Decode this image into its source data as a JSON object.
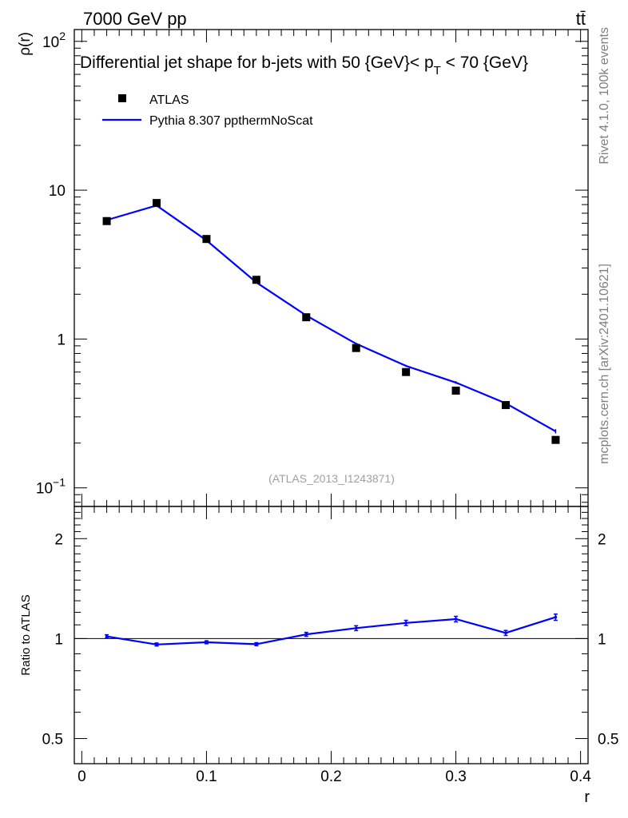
{
  "header": {
    "energy_label": "7000 GeV pp",
    "process_label": "tt̄"
  },
  "side_labels": {
    "rivet": "Rivet 4.1.0,  100k events",
    "mcplots": "mcplots.cern.ch [arXiv:2401.10621]"
  },
  "chart_data": [
    {
      "type": "scatter",
      "panel": "main",
      "title": "Differential jet shape for b-jets with 50 {GeV}< p_T < 70 {GeV}",
      "title_parts": {
        "pre": "Differential jet shape for b-jets with 50 {GeV}< p",
        "sub": "T",
        "post": " < 70 {GeV}"
      },
      "ylabel": "ρ(r)",
      "xlabel": "r",
      "yscale": "log",
      "xlim": [
        -0.006,
        0.406
      ],
      "ylim": [
        0.075,
        120
      ],
      "x_ticks": [
        0,
        0.1,
        0.2,
        0.3,
        0.4
      ],
      "y_tick_labels": [
        {
          "value": 100,
          "base": "10",
          "exp": "2"
        },
        {
          "value": 10,
          "base": "10",
          "exp": ""
        },
        {
          "value": 1,
          "base": "1",
          "exp": ""
        },
        {
          "value": 0.1,
          "base": "10",
          "exp": "−1"
        }
      ],
      "watermark": "(ATLAS_2013_I1243871)",
      "legend": [
        "ATLAS",
        "Pythia 8.307 ppthermNoScat"
      ],
      "x": [
        0.02,
        0.06,
        0.1,
        0.14,
        0.18,
        0.22,
        0.26,
        0.3,
        0.34,
        0.38
      ],
      "series": [
        {
          "name": "ATLAS",
          "style": "markers",
          "color": "#000000",
          "values": [
            6.2,
            8.2,
            4.7,
            2.5,
            1.4,
            0.87,
            0.6,
            0.45,
            0.36,
            0.21
          ]
        },
        {
          "name": "Pythia 8.307 ppthermNoScat",
          "style": "line",
          "color": "#0000ff",
          "values": [
            6.3,
            7.9,
            4.6,
            2.4,
            1.44,
            0.93,
            0.66,
            0.51,
            0.37,
            0.24
          ],
          "errors": [
            0.03,
            0.03,
            0.03,
            0.02,
            0.015,
            0.012,
            0.01,
            0.01,
            0.008,
            0.008
          ]
        }
      ]
    },
    {
      "type": "line",
      "panel": "ratio",
      "ylabel": "Ratio to ATLAS",
      "xlabel": "r",
      "yscale": "log",
      "xlim": [
        -0.006,
        0.406
      ],
      "ylim": [
        0.42,
        2.5
      ],
      "y_ticks": [
        0.5,
        1,
        2
      ],
      "y_tick_labels": [
        "0.5",
        "1",
        "2"
      ],
      "reference": 1,
      "x": [
        0.02,
        0.06,
        0.1,
        0.14,
        0.18,
        0.22,
        0.26,
        0.3,
        0.34,
        0.38
      ],
      "series": [
        {
          "name": "Pythia 8.307 ppthermNoScat / ATLAS",
          "color": "#0000ff",
          "values": [
            1.015,
            0.96,
            0.975,
            0.962,
            1.03,
            1.075,
            1.115,
            1.145,
            1.04,
            1.16
          ],
          "errors": [
            0.012,
            0.01,
            0.01,
            0.01,
            0.014,
            0.018,
            0.02,
            0.022,
            0.018,
            0.025
          ]
        }
      ]
    }
  ]
}
